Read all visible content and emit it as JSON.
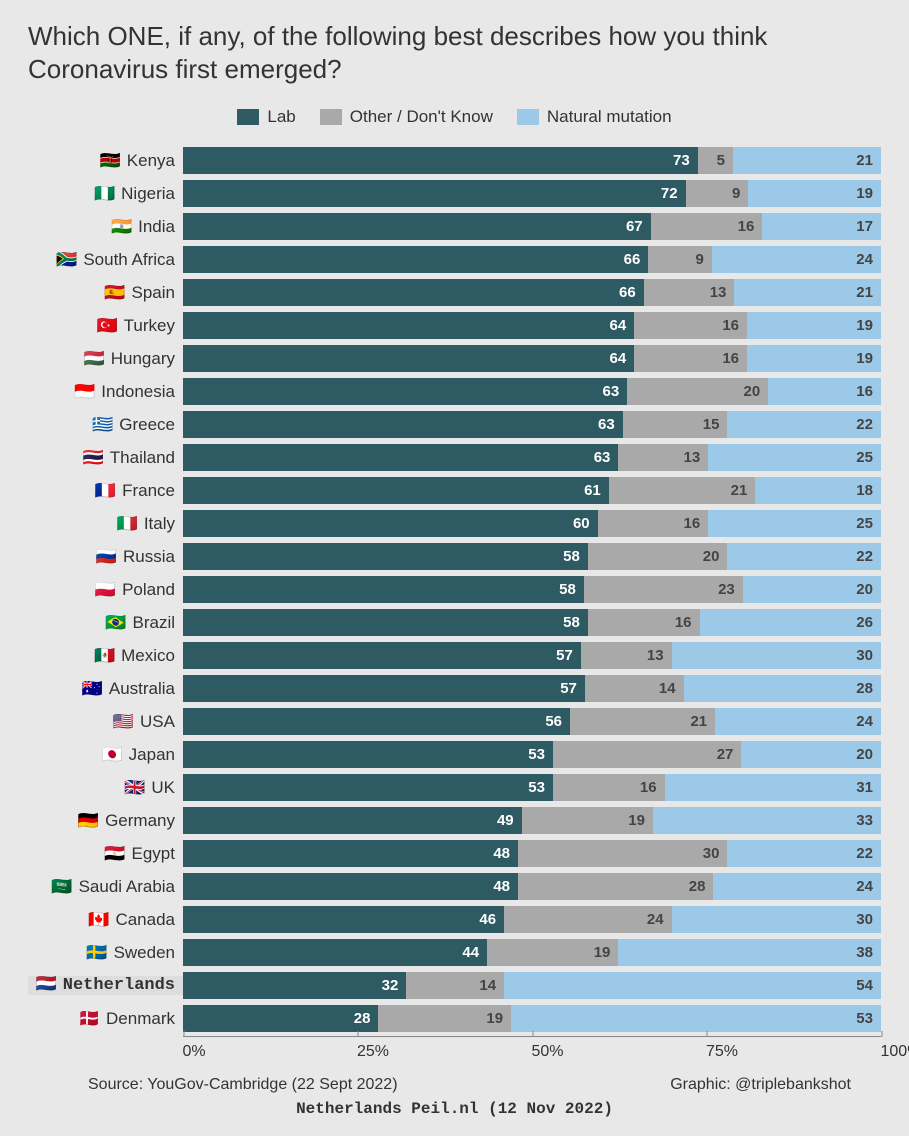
{
  "title": "Which ONE, if any, of the following best describes how you think Coronavirus first emerged?",
  "legend": [
    {
      "label": "Lab",
      "color": "#2d5a63"
    },
    {
      "label": "Other / Don't Know",
      "color": "#a9a9a9"
    },
    {
      "label": "Natural mutation",
      "color": "#9cc9e8"
    }
  ],
  "colors": {
    "lab": "#2d5a63",
    "other": "#a9a9a9",
    "nat": "#9cc9e8"
  },
  "axis_ticks": [
    {
      "pos": 0,
      "label": "0%"
    },
    {
      "pos": 25,
      "label": "25%"
    },
    {
      "pos": 50,
      "label": "50%"
    },
    {
      "pos": 75,
      "label": "75%"
    },
    {
      "pos": 100,
      "label": "100%"
    }
  ],
  "rows": [
    {
      "flag": "🇰🇪",
      "name": "Kenya",
      "lab": 73,
      "other": 5,
      "nat": 21
    },
    {
      "flag": "🇳🇬",
      "name": "Nigeria",
      "lab": 72,
      "other": 9,
      "nat": 19
    },
    {
      "flag": "🇮🇳",
      "name": "India",
      "lab": 67,
      "other": 16,
      "nat": 17
    },
    {
      "flag": "🇿🇦",
      "name": "South Africa",
      "lab": 66,
      "other": 9,
      "nat": 24
    },
    {
      "flag": "🇪🇸",
      "name": "Spain",
      "lab": 66,
      "other": 13,
      "nat": 21
    },
    {
      "flag": "🇹🇷",
      "name": "Turkey",
      "lab": 64,
      "other": 16,
      "nat": 19
    },
    {
      "flag": "🇭🇺",
      "name": "Hungary",
      "lab": 64,
      "other": 16,
      "nat": 19
    },
    {
      "flag": "🇮🇩",
      "name": "Indonesia",
      "lab": 63,
      "other": 20,
      "nat": 16
    },
    {
      "flag": "🇬🇷",
      "name": "Greece",
      "lab": 63,
      "other": 15,
      "nat": 22
    },
    {
      "flag": "🇹🇭",
      "name": "Thailand",
      "lab": 63,
      "other": 13,
      "nat": 25
    },
    {
      "flag": "🇫🇷",
      "name": "France",
      "lab": 61,
      "other": 21,
      "nat": 18
    },
    {
      "flag": "🇮🇹",
      "name": "Italy",
      "lab": 60,
      "other": 16,
      "nat": 25
    },
    {
      "flag": "🇷🇺",
      "name": "Russia",
      "lab": 58,
      "other": 20,
      "nat": 22
    },
    {
      "flag": "🇵🇱",
      "name": "Poland",
      "lab": 58,
      "other": 23,
      "nat": 20
    },
    {
      "flag": "🇧🇷",
      "name": "Brazil",
      "lab": 58,
      "other": 16,
      "nat": 26
    },
    {
      "flag": "🇲🇽",
      "name": "Mexico",
      "lab": 57,
      "other": 13,
      "nat": 30
    },
    {
      "flag": "🇦🇺",
      "name": "Australia",
      "lab": 57,
      "other": 14,
      "nat": 28
    },
    {
      "flag": "🇺🇸",
      "name": "USA",
      "lab": 56,
      "other": 21,
      "nat": 24
    },
    {
      "flag": "🇯🇵",
      "name": "Japan",
      "lab": 53,
      "other": 27,
      "nat": 20
    },
    {
      "flag": "🇬🇧",
      "name": "UK",
      "lab": 53,
      "other": 16,
      "nat": 31
    },
    {
      "flag": "🇩🇪",
      "name": "Germany",
      "lab": 49,
      "other": 19,
      "nat": 33
    },
    {
      "flag": "🇪🇬",
      "name": "Egypt",
      "lab": 48,
      "other": 30,
      "nat": 22
    },
    {
      "flag": "🇸🇦",
      "name": "Saudi Arabia",
      "lab": 48,
      "other": 28,
      "nat": 24
    },
    {
      "flag": "🇨🇦",
      "name": "Canada",
      "lab": 46,
      "other": 24,
      "nat": 30
    },
    {
      "flag": "🇸🇪",
      "name": "Sweden",
      "lab": 44,
      "other": 19,
      "nat": 38
    },
    {
      "flag": "🇳🇱",
      "name": "Netherlands",
      "lab": 32,
      "other": 14,
      "nat": 54,
      "highlight": true
    },
    {
      "flag": "🇩🇰",
      "name": "Denmark",
      "lab": 28,
      "other": 19,
      "nat": 53
    }
  ],
  "source_left": "Source: YouGov-Cambridge (22 Sept 2022)",
  "source_right": "Graphic: @triplebankshot",
  "source_extra": "Netherlands Peil.nl (12 Nov 2022)"
}
